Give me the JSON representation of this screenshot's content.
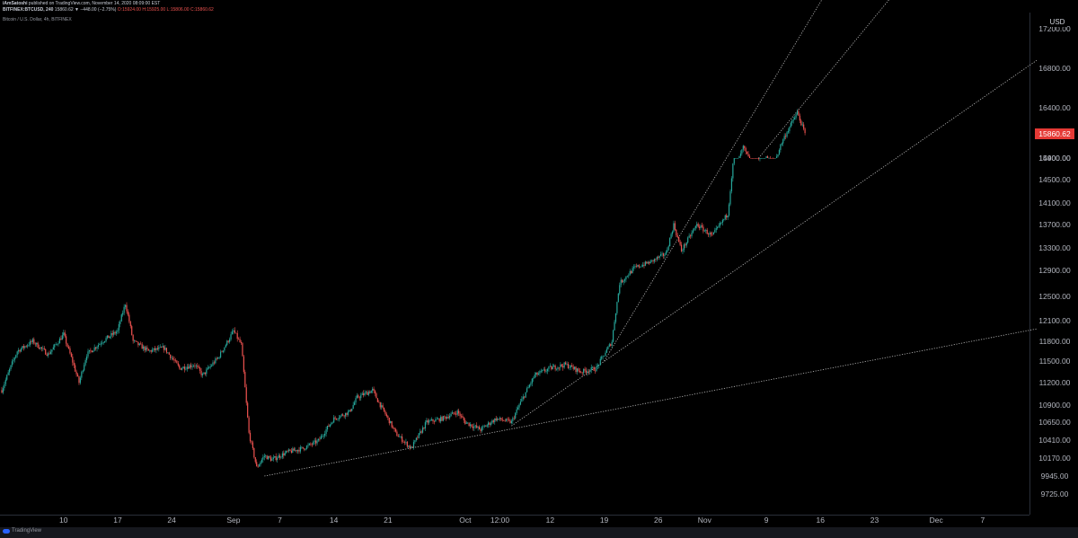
{
  "header": {
    "publisher": "iAmSatoshi",
    "published_line": " published on TradingView.com, November 14, 2020 08:09:00 EST",
    "symbol_line": "BITFINEX:BTCUSD, 240",
    "price_change": " 15860.62 ▼ −448.00 (−2.75%)",
    "ohlc": " O:15924.00 H:15925.00 L:15806.00 C:15860.62",
    "subtitle": "Bitcoin / U.S. Dollar, 4h, BITFINEX"
  },
  "footer": {
    "brand": "TradingView"
  },
  "colors": {
    "up": "#26a69a",
    "down": "#ef5350",
    "price_tag": "#e53935",
    "background": "#000000",
    "trendline": "#bfbfbf"
  },
  "chart_data": {
    "type": "candlestick",
    "title": "Bitcoin / U.S. Dollar, 4h, BITFINEX",
    "y_axis_unit": "USD",
    "y_ticks": [
      9725,
      9945,
      10170,
      10410,
      10650,
      10900,
      11200,
      11500,
      11800,
      12100,
      12500,
      12900,
      13300,
      13700,
      14100,
      14500,
      14900,
      15400,
      15860.62,
      16400,
      16800,
      17200
    ],
    "y_tick_labels": [
      "9725.00",
      "9945.00",
      "10170.00",
      "10410.00",
      "10650.00",
      "10900.00",
      "11200.00",
      "11500.00",
      "11800.00",
      "12100.00",
      "12500.00",
      "12900.00",
      "13300.00",
      "13700.00",
      "14100.00",
      "14500.00",
      "14900.00",
      "15400.00",
      "15860.62",
      "16400.00",
      "16800.00",
      "17200.00"
    ],
    "last_price": 15860.62,
    "last_price_label": "15860.62",
    "x_tick_labels": [
      "10",
      "17",
      "24",
      "Sep",
      "7",
      "14",
      "21",
      "Oct",
      "12:00",
      "12",
      "19",
      "26",
      "Nov",
      "9",
      "16",
      "23",
      "Dec",
      "7"
    ],
    "x_tick_dates": [
      "2020-08-10",
      "2020-08-17",
      "2020-08-24",
      "2020-09-01",
      "2020-09-07",
      "2020-09-14",
      "2020-09-21",
      "2020-10-01",
      "2020-10-05 12:00",
      "2020-10-12",
      "2020-10-19",
      "2020-10-26",
      "2020-11-01",
      "2020-11-09",
      "2020-11-16",
      "2020-11-23",
      "2020-12-01",
      "2020-12-07"
    ],
    "x_range": [
      "2020-08-02",
      "2020-12-14"
    ],
    "price_path": [
      [
        "2020-08-02",
        11100
      ],
      [
        "2020-08-04",
        11650
      ],
      [
        "2020-08-06",
        11800
      ],
      [
        "2020-08-08",
        11600
      ],
      [
        "2020-08-10",
        11900
      ],
      [
        "2020-08-12",
        11200
      ],
      [
        "2020-08-13",
        11600
      ],
      [
        "2020-08-15",
        11800
      ],
      [
        "2020-08-17",
        11950
      ],
      [
        "2020-08-18",
        12380
      ],
      [
        "2020-08-19",
        11800
      ],
      [
        "2020-08-21",
        11650
      ],
      [
        "2020-08-23",
        11700
      ],
      [
        "2020-08-25",
        11400
      ],
      [
        "2020-08-27",
        11450
      ],
      [
        "2020-08-28",
        11300
      ],
      [
        "2020-08-30",
        11550
      ],
      [
        "2020-09-01",
        11950
      ],
      [
        "2020-09-02",
        11750
      ],
      [
        "2020-09-03",
        10500
      ],
      [
        "2020-09-04",
        10050
      ],
      [
        "2020-09-05",
        10200
      ],
      [
        "2020-09-06",
        10150
      ],
      [
        "2020-09-08",
        10250
      ],
      [
        "2020-09-10",
        10300
      ],
      [
        "2020-09-12",
        10400
      ],
      [
        "2020-09-14",
        10700
      ],
      [
        "2020-09-16",
        10800
      ],
      [
        "2020-09-17",
        11000
      ],
      [
        "2020-09-19",
        11100
      ],
      [
        "2020-09-20",
        10900
      ],
      [
        "2020-09-22",
        10500
      ],
      [
        "2020-09-24",
        10300
      ],
      [
        "2020-09-26",
        10650
      ],
      [
        "2020-09-28",
        10700
      ],
      [
        "2020-09-30",
        10800
      ],
      [
        "2020-10-01",
        10650
      ],
      [
        "2020-10-03",
        10550
      ],
      [
        "2020-10-05",
        10700
      ],
      [
        "2020-10-07",
        10650
      ],
      [
        "2020-10-08",
        10900
      ],
      [
        "2020-10-10",
        11300
      ],
      [
        "2020-10-12",
        11400
      ],
      [
        "2020-10-14",
        11450
      ],
      [
        "2020-10-16",
        11350
      ],
      [
        "2020-10-18",
        11400
      ],
      [
        "2020-10-20",
        11800
      ],
      [
        "2020-10-21",
        12700
      ],
      [
        "2020-10-23",
        12950
      ],
      [
        "2020-10-25",
        13050
      ],
      [
        "2020-10-27",
        13200
      ],
      [
        "2020-10-28",
        13700
      ],
      [
        "2020-10-29",
        13250
      ],
      [
        "2020-10-31",
        13700
      ],
      [
        "2020-11-02",
        13500
      ],
      [
        "2020-11-04",
        13900
      ],
      [
        "2020-11-05",
        15200
      ],
      [
        "2020-11-06",
        15600
      ],
      [
        "2020-11-07",
        15300
      ],
      [
        "2020-11-08",
        14900
      ],
      [
        "2020-11-09",
        15400
      ],
      [
        "2020-11-10",
        15300
      ],
      [
        "2020-11-11",
        15700
      ],
      [
        "2020-11-12",
        16000
      ],
      [
        "2020-11-13",
        16300
      ],
      [
        "2020-11-14",
        15860.62
      ]
    ],
    "trendlines": [
      {
        "p1": [
          "2020-09-05",
          9945
        ],
        "p2": [
          "2020-12-14",
          11980
        ]
      },
      {
        "p1": [
          "2020-10-07",
          10600
        ],
        "p2": [
          "2020-12-14",
          16880
        ]
      },
      {
        "p1": [
          "2020-10-19",
          11500
        ],
        "p2": [
          "2020-11-17",
          17600
        ]
      },
      {
        "p1": [
          "2020-11-08",
          15000
        ],
        "p2": [
          "2020-11-26",
          17600
        ]
      }
    ],
    "grid": false,
    "legend": "none"
  }
}
